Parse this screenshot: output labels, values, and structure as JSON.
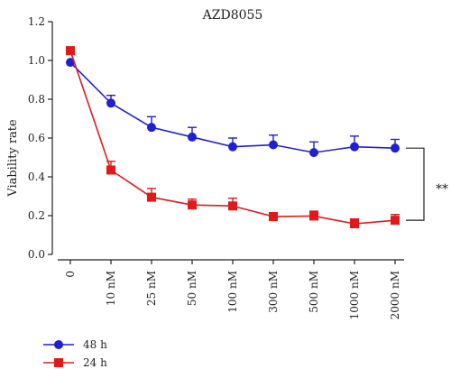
{
  "chart_data": {
    "type": "line",
    "title": "AZD8055",
    "xlabel": "",
    "ylabel": "Viability rate",
    "categories": [
      "0",
      "10 nM",
      "25 nM",
      "50 nM",
      "100 nM",
      "300 nM",
      "500 nM",
      "1000 nM",
      "2000 nM"
    ],
    "ylim": [
      0.0,
      1.2
    ],
    "yticks": [
      "0.0",
      "0.2",
      "0.4",
      "0.6",
      "0.8",
      "1.0",
      "1.2"
    ],
    "series": [
      {
        "name": "48 h",
        "color": "#1f1fd6",
        "marker": "circle",
        "values": [
          0.99,
          0.78,
          0.655,
          0.605,
          0.555,
          0.565,
          0.525,
          0.555,
          0.548
        ],
        "errors": [
          0.0,
          0.04,
          0.055,
          0.05,
          0.045,
          0.05,
          0.055,
          0.055,
          0.045
        ]
      },
      {
        "name": "24 h",
        "color": "#e01a1a",
        "marker": "square",
        "values": [
          1.05,
          0.435,
          0.295,
          0.255,
          0.25,
          0.195,
          0.198,
          0.158,
          0.176
        ],
        "errors": [
          0.02,
          0.045,
          0.045,
          0.03,
          0.04,
          0.02,
          0.025,
          0.025,
          0.03
        ]
      }
    ],
    "annotation": "**",
    "legend_position": "bottom-left",
    "grid": false
  }
}
